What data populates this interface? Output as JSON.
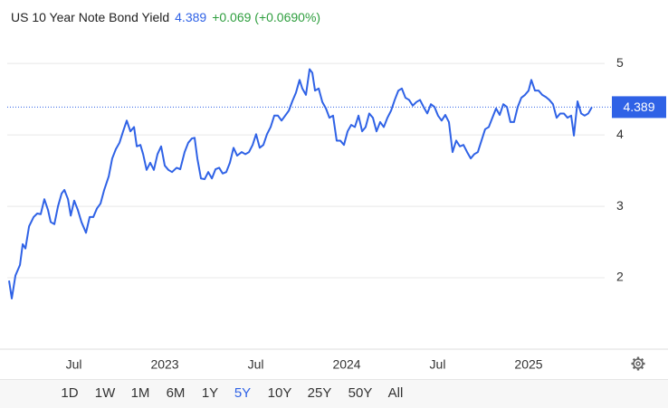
{
  "chart_data": {
    "type": "line",
    "title": "US 10 Year Note Bond Yield",
    "price": 4.389,
    "change": "+0.069 (+0.0690%)",
    "color": "#2f62e6",
    "x": [
      2022.144,
      2022.159,
      2022.179,
      2022.204,
      2022.219,
      2022.234,
      2022.254,
      2022.279,
      2022.299,
      2022.318,
      2022.338,
      2022.358,
      2022.373,
      2022.393,
      2022.413,
      2022.433,
      2022.448,
      2022.468,
      2022.483,
      2022.502,
      2022.522,
      2022.542,
      2022.567,
      2022.587,
      2022.607,
      2022.627,
      2022.647,
      2022.667,
      2022.692,
      2022.711,
      2022.731,
      2022.751,
      2022.771,
      2022.791,
      2022.811,
      2022.831,
      2022.846,
      2022.866,
      2022.881,
      2022.9,
      2022.92,
      2022.94,
      2022.96,
      2022.98,
      2023.0,
      2023.02,
      2023.04,
      2023.065,
      2023.085,
      2023.109,
      2023.129,
      2023.149,
      2023.164,
      2023.179,
      2023.199,
      2023.219,
      2023.239,
      2023.259,
      2023.279,
      2023.299,
      2023.318,
      2023.338,
      2023.358,
      2023.378,
      2023.398,
      2023.423,
      2023.443,
      2023.463,
      2023.483,
      2023.502,
      2023.522,
      2023.542,
      2023.562,
      2023.582,
      2023.602,
      2023.622,
      2023.642,
      2023.662,
      2023.682,
      2023.701,
      2023.721,
      2023.741,
      2023.756,
      2023.776,
      2023.796,
      2023.811,
      2023.826,
      2023.846,
      2023.866,
      2023.886,
      2023.905,
      2023.925,
      2023.945,
      2023.965,
      2023.985,
      2024.005,
      2024.025,
      2024.045,
      2024.065,
      2024.085,
      2024.104,
      2024.124,
      2024.144,
      2024.164,
      2024.184,
      2024.204,
      2024.224,
      2024.244,
      2024.264,
      2024.284,
      2024.303,
      2024.323,
      2024.343,
      2024.363,
      2024.383,
      2024.403,
      2024.423,
      2024.443,
      2024.463,
      2024.483,
      2024.502,
      2024.522,
      2024.542,
      2024.562,
      2024.582,
      2024.602,
      2024.622,
      2024.642,
      2024.662,
      2024.682,
      2024.701,
      2024.721,
      2024.741,
      2024.761,
      2024.781,
      2024.801,
      2024.821,
      2024.841,
      2024.861,
      2024.881,
      2024.9,
      2024.92,
      2024.94,
      2024.96,
      2024.98,
      2025.0,
      2025.015,
      2025.035,
      2025.055,
      2025.075,
      2025.095,
      2025.114,
      2025.134,
      2025.154,
      2025.174,
      2025.194,
      2025.214,
      2025.234,
      2025.249,
      2025.269,
      2025.289,
      2025.308,
      2025.328,
      2025.348
    ],
    "values": [
      1.96,
      1.71,
      2.03,
      2.18,
      2.47,
      2.41,
      2.72,
      2.85,
      2.9,
      2.89,
      3.1,
      2.95,
      2.78,
      2.75,
      3.0,
      3.18,
      3.23,
      3.1,
      2.87,
      3.08,
      2.95,
      2.78,
      2.63,
      2.85,
      2.85,
      2.97,
      3.04,
      3.23,
      3.42,
      3.67,
      3.8,
      3.89,
      4.05,
      4.2,
      4.05,
      4.11,
      3.84,
      3.86,
      3.73,
      3.51,
      3.61,
      3.51,
      3.73,
      3.84,
      3.57,
      3.51,
      3.48,
      3.54,
      3.52,
      3.76,
      3.89,
      3.95,
      3.96,
      3.67,
      3.39,
      3.38,
      3.48,
      3.39,
      3.52,
      3.54,
      3.46,
      3.48,
      3.61,
      3.82,
      3.71,
      3.76,
      3.73,
      3.76,
      3.86,
      4.01,
      3.82,
      3.86,
      4.01,
      4.11,
      4.27,
      4.27,
      4.2,
      4.27,
      4.34,
      4.47,
      4.59,
      4.77,
      4.65,
      4.56,
      4.92,
      4.87,
      4.62,
      4.65,
      4.46,
      4.37,
      4.24,
      4.27,
      3.92,
      3.92,
      3.86,
      4.05,
      4.14,
      4.11,
      4.27,
      4.05,
      4.11,
      4.3,
      4.24,
      4.05,
      4.18,
      4.11,
      4.24,
      4.34,
      4.49,
      4.62,
      4.65,
      4.52,
      4.49,
      4.41,
      4.46,
      4.49,
      4.39,
      4.3,
      4.43,
      4.39,
      4.27,
      4.2,
      4.28,
      4.18,
      3.76,
      3.92,
      3.84,
      3.86,
      3.76,
      3.67,
      3.73,
      3.76,
      3.92,
      4.08,
      4.11,
      4.24,
      4.37,
      4.28,
      4.43,
      4.39,
      4.18,
      4.18,
      4.39,
      4.52,
      4.56,
      4.62,
      4.77,
      4.62,
      4.62,
      4.56,
      4.53,
      4.49,
      4.43,
      4.24,
      4.3,
      4.3,
      4.24,
      4.27,
      3.99,
      4.47,
      4.3,
      4.27,
      4.3,
      4.389
    ],
    "xlim": [
      2022.134,
      2025.418
    ],
    "xticks": [
      {
        "value": 2022.5,
        "label": "Jul"
      },
      2023,
      {
        "value": 2023.5,
        "label": "Jul"
      },
      2024,
      {
        "value": 2024.5,
        "label": "Jul"
      },
      2025
    ],
    "ylim": [
      1,
      5.8
    ],
    "yticks": [
      2,
      3,
      4,
      5
    ],
    "grid": true,
    "ranges": [
      "1D",
      "1W",
      "1M",
      "6M",
      "1Y",
      "5Y",
      "10Y",
      "25Y",
      "50Y",
      "All"
    ],
    "selected_range": 5
  }
}
